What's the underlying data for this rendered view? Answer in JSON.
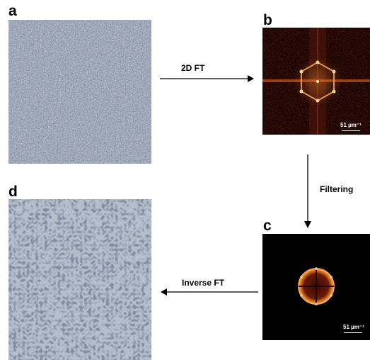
{
  "panels": {
    "a": {
      "letter": "a"
    },
    "b": {
      "letter": "b",
      "scale_label": "51 µm⁻¹"
    },
    "c": {
      "letter": "c",
      "scale_label": "51 µm⁻¹"
    },
    "d": {
      "letter": "d"
    }
  },
  "steps": {
    "forward": "2D FT",
    "filter": "Filtering",
    "inverse": "Inverse FT"
  },
  "colors": {
    "afm_a": "#7f8a9c",
    "afm_d": "#9aa6b6",
    "ft_background": "#1a0402",
    "ft_ring": "#f0b060",
    "arrow": "#000000"
  }
}
